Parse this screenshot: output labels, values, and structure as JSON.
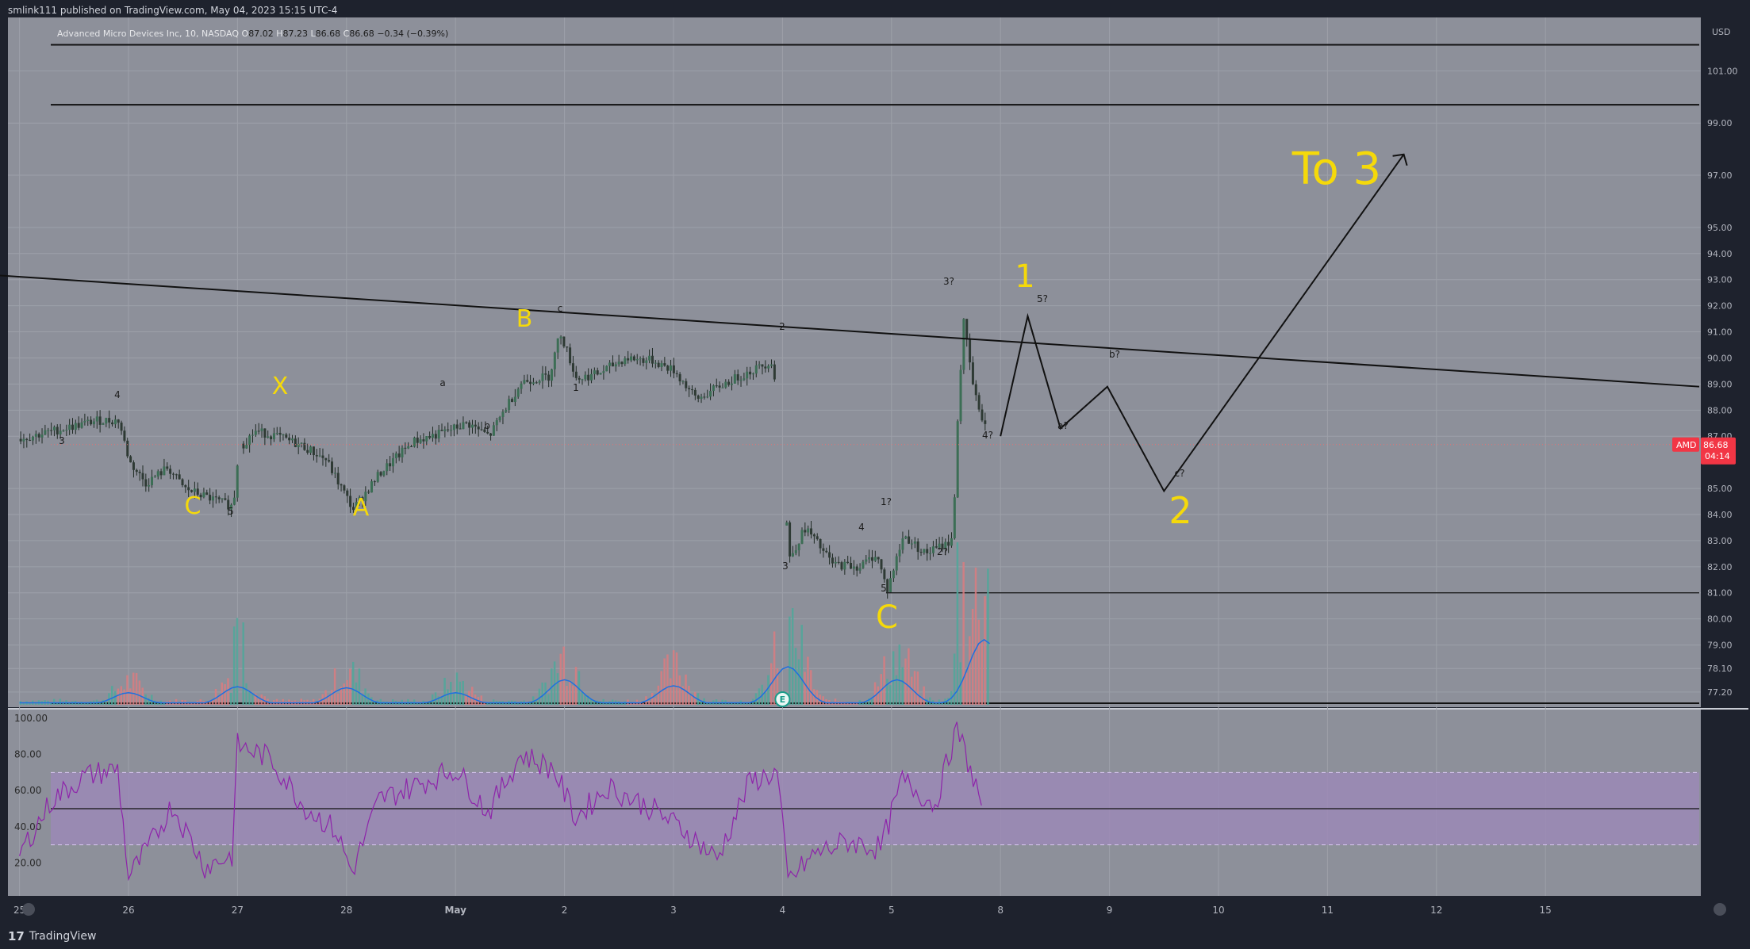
{
  "header": {
    "publish_text": "smlink111 published on TradingView.com, May 04, 2023 15:15 UTC-4",
    "currency": "USD"
  },
  "legend": {
    "symbol": "Advanced Micro Devices Inc, 10, NASDAQ",
    "o_label": "O",
    "o_value": "87.02",
    "h_label": "H",
    "h_value": "87.23",
    "l_label": "L",
    "l_value": "86.68",
    "c_label": "C",
    "c_value": "86.68",
    "change": "−0.34 (−0.39%)"
  },
  "price_badge": {
    "ticker": "AMD",
    "price": "86.68",
    "countdown": "04:14"
  },
  "footer": {
    "brand": "TradingView",
    "brand_mark": "17"
  },
  "colors": {
    "background": "#1e222d",
    "pane": "#8d909a",
    "rsi_band": "#9c88b8",
    "rsi_line": "#8e24aa",
    "volume_ma": "#1e6fe0",
    "badge": "#f23645",
    "annotation_yellow": "#f5d90a",
    "candle_body": "#2e3a34"
  },
  "chart_data": [
    {
      "type": "candlestick",
      "y_axis_ticks": [
        "101.00",
        "99.00",
        "97.00",
        "95.00",
        "94.00",
        "93.00",
        "92.00",
        "91.00",
        "90.00",
        "89.00",
        "88.00",
        "87.00",
        "85.00",
        "84.00",
        "83.00",
        "82.00",
        "81.00",
        "80.00",
        "79.00",
        "78.10",
        "77.20"
      ],
      "ylim": [
        76.8,
        102.5
      ],
      "x_axis_ticks": [
        "25",
        "26",
        "27",
        "28",
        "May",
        "2",
        "3",
        "4",
        "5",
        "8",
        "9",
        "10",
        "11",
        "12",
        "15"
      ],
      "horizontal_lines": [
        102.0,
        99.7,
        81.0
      ],
      "trendline": {
        "from": [
          0,
          93.3
        ],
        "to": [
          15,
          88.9
        ]
      },
      "series_path": [
        [
          0.0,
          86.9
        ],
        [
          0.4,
          87.3
        ],
        [
          0.7,
          87.6
        ],
        [
          0.9,
          87.6
        ],
        [
          1.0,
          86.0
        ],
        [
          1.15,
          85.2
        ],
        [
          1.35,
          85.8
        ],
        [
          1.5,
          85.0
        ],
        [
          1.75,
          84.6
        ],
        [
          1.95,
          84.3
        ],
        [
          2.0,
          86.5
        ],
        [
          2.15,
          87.2
        ],
        [
          2.35,
          87.0
        ],
        [
          2.6,
          86.6
        ],
        [
          2.8,
          86.1
        ],
        [
          3.05,
          84.2
        ],
        [
          3.3,
          85.6
        ],
        [
          3.6,
          86.8
        ],
        [
          3.85,
          87.1
        ],
        [
          4.1,
          87.5
        ],
        [
          4.3,
          87.0
        ],
        [
          4.45,
          88.1
        ],
        [
          4.6,
          89.1
        ],
        [
          4.85,
          89.3
        ],
        [
          4.95,
          91.0
        ],
        [
          5.1,
          89.2
        ],
        [
          5.3,
          89.4
        ],
        [
          5.55,
          90.0
        ],
        [
          5.8,
          89.9
        ],
        [
          6.0,
          89.5
        ],
        [
          6.2,
          88.4
        ],
        [
          6.45,
          89.0
        ],
        [
          6.7,
          89.5
        ],
        [
          6.9,
          89.9
        ],
        [
          7.0,
          85.5
        ],
        [
          7.05,
          82.3
        ],
        [
          7.2,
          83.5
        ],
        [
          7.45,
          82.1
        ],
        [
          7.7,
          82.0
        ],
        [
          7.85,
          82.5
        ],
        [
          7.95,
          81.1
        ],
        [
          8.1,
          83.2
        ],
        [
          8.3,
          82.5
        ],
        [
          8.45,
          82.8
        ],
        [
          8.55,
          83.0
        ],
        [
          8.6,
          88.0
        ],
        [
          8.65,
          91.4
        ],
        [
          8.75,
          88.6
        ],
        [
          8.85,
          87.4
        ]
      ],
      "wave_labels": [
        "3",
        "4",
        "C",
        "5",
        "X",
        "A",
        "a",
        "b",
        "B",
        "c",
        "1",
        "2",
        "3",
        "4",
        "5",
        "C",
        "1?",
        "2?",
        "3?",
        "4?",
        "5?",
        "a?",
        "b?",
        "c?",
        "1",
        "2",
        "To 3"
      ],
      "projection_path": [
        [
          9.0,
          87.0
        ],
        [
          9.25,
          91.6
        ],
        [
          9.55,
          87.3
        ],
        [
          9.98,
          88.9
        ],
        [
          10.5,
          84.9
        ],
        [
          12.7,
          97.8
        ]
      ]
    },
    {
      "type": "bar",
      "name": "Volume",
      "x_range": [
        0,
        8.9
      ],
      "moving_average_peaks": [
        [
          1.0,
          0.12
        ],
        [
          2.0,
          0.18
        ],
        [
          3.0,
          0.17
        ],
        [
          4.0,
          0.12
        ],
        [
          5.0,
          0.25
        ],
        [
          6.0,
          0.19
        ],
        [
          7.05,
          0.38
        ],
        [
          8.05,
          0.25
        ],
        [
          8.85,
          0.65
        ]
      ]
    },
    {
      "type": "line",
      "name": "RSI",
      "y_axis_ticks": [
        "100.00",
        "80.00",
        "60.00",
        "40.00",
        "20.00"
      ],
      "ylim": [
        0,
        100
      ],
      "band": [
        30,
        70
      ],
      "midline": 50,
      "values": [
        [
          0.0,
          25
        ],
        [
          0.3,
          55
        ],
        [
          0.6,
          68
        ],
        [
          0.9,
          72
        ],
        [
          1.0,
          12
        ],
        [
          1.2,
          30
        ],
        [
          1.4,
          52
        ],
        [
          1.7,
          18
        ],
        [
          1.95,
          24
        ],
        [
          2.0,
          85
        ],
        [
          2.3,
          78
        ],
        [
          2.6,
          52
        ],
        [
          2.9,
          38
        ],
        [
          3.05,
          15
        ],
        [
          3.3,
          55
        ],
        [
          3.6,
          62
        ],
        [
          4.0,
          72
        ],
        [
          4.3,
          48
        ],
        [
          4.6,
          80
        ],
        [
          4.9,
          72
        ],
        [
          5.1,
          45
        ],
        [
          5.4,
          62
        ],
        [
          5.8,
          50
        ],
        [
          6.1,
          38
        ],
        [
          6.4,
          22
        ],
        [
          6.7,
          65
        ],
        [
          6.95,
          70
        ],
        [
          7.05,
          10
        ],
        [
          7.3,
          25
        ],
        [
          7.6,
          32
        ],
        [
          7.9,
          28
        ],
        [
          8.1,
          66
        ],
        [
          8.4,
          52
        ],
        [
          8.6,
          95
        ],
        [
          8.85,
          48
        ]
      ]
    }
  ]
}
